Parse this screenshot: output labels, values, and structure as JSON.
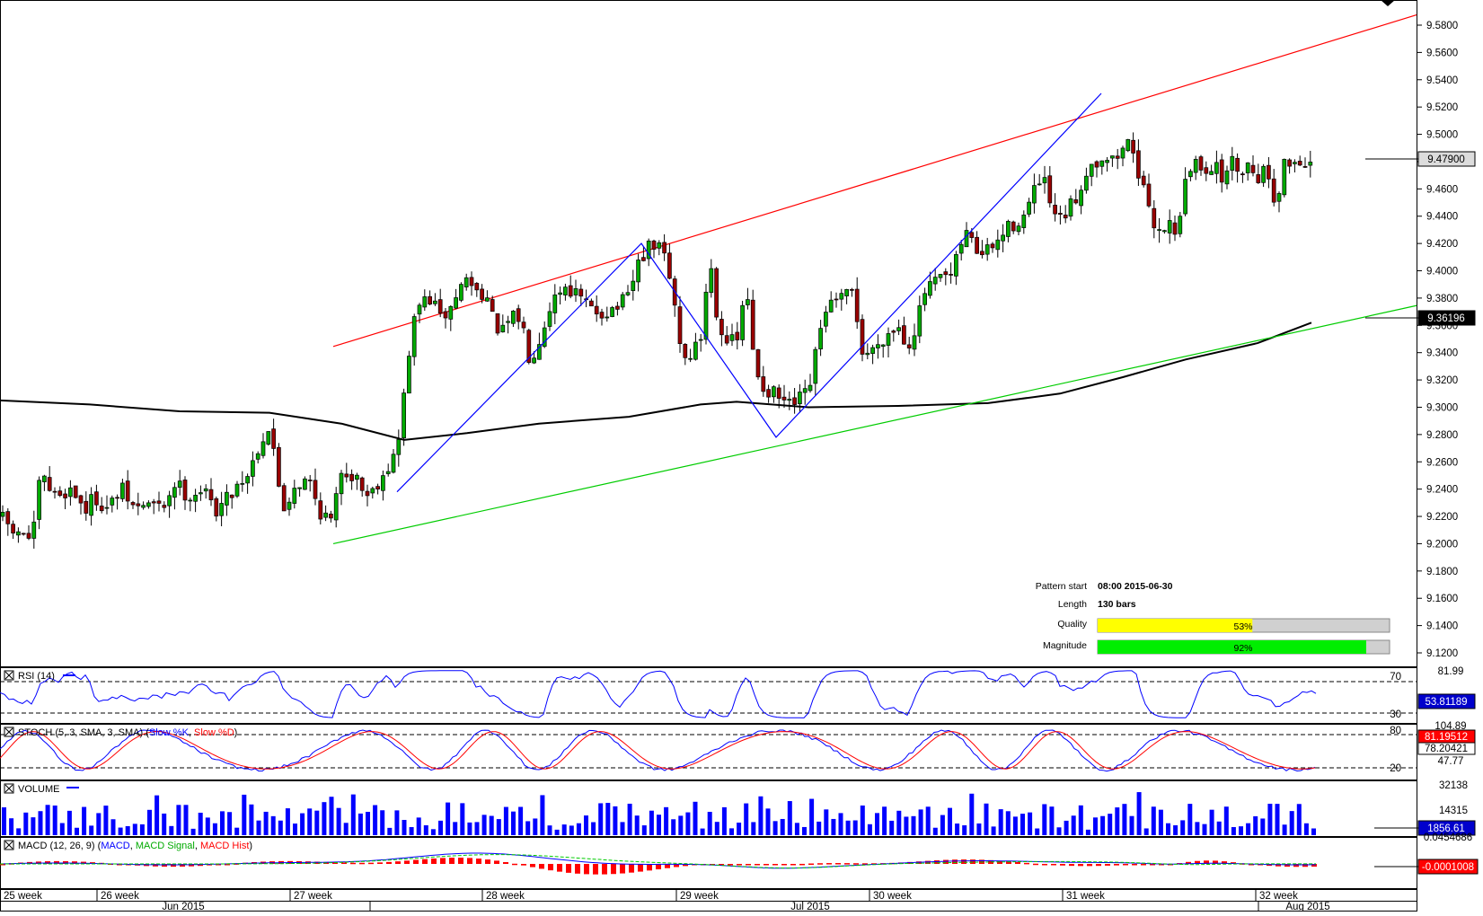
{
  "chart_data": {
    "type": "candlestick",
    "price_axis": {
      "ylim": [
        9.105,
        9.588
      ],
      "ticks": [
        "9.5800",
        "9.5600",
        "9.5400",
        "9.5200",
        "9.5000",
        "9.4800",
        "9.4600",
        "9.4400",
        "9.4200",
        "9.4000",
        "9.3800",
        "9.3600",
        "9.3400",
        "9.3200",
        "9.3000",
        "9.2800",
        "9.2600",
        "9.2400",
        "9.2200",
        "9.2000",
        "9.1800",
        "9.1600",
        "9.1400",
        "9.1200"
      ],
      "tick_values": [
        9.58,
        9.56,
        9.54,
        9.52,
        9.5,
        9.48,
        9.46,
        9.44,
        9.42,
        9.4,
        9.38,
        9.36,
        9.34,
        9.32,
        9.3,
        9.28,
        9.26,
        9.24,
        9.22,
        9.2,
        9.18,
        9.16,
        9.14,
        9.12
      ]
    },
    "current_price_label": "9.47900",
    "current_price": 9.479,
    "ma_value_label": "9.36196",
    "ma_value": 9.36196,
    "pattern_info": {
      "pattern_start_label": "Pattern start",
      "pattern_start_value": "08:00 2015-06-30",
      "length_label": "Length",
      "length_value": "130 bars",
      "quality_label": "Quality",
      "quality_value": "53%",
      "quality_fraction": 0.53,
      "magnitude_label": "Magnitude",
      "magnitude_value": "92%",
      "magnitude_fraction": 0.92
    },
    "channel": {
      "upper_line": {
        "color": "#ff0000",
        "start_price": 9.3445,
        "end_price": 9.5875
      },
      "lower_line": {
        "color": "#00cc00",
        "start_price": 9.2,
        "end_price": 9.3745
      }
    },
    "zigzag": {
      "color": "#0000ff",
      "prices": [
        9.238,
        9.42,
        9.278,
        9.53
      ]
    },
    "candles": {
      "up_color": "#00aa00",
      "down_color": "#990000",
      "first_index": 0
    },
    "time_axis": {
      "week_labels": [
        "25 week",
        "26 week",
        "27 week",
        "28 week",
        "29 week",
        "30 week",
        "31 week",
        "32 week"
      ],
      "month_labels": [
        "Jun 2015",
        "Jul 2015",
        "Aug 2015"
      ]
    },
    "indicators": {
      "rsi": {
        "title": "RSI (14)",
        "levels": [
          "70",
          "30"
        ],
        "top_label": "81.99",
        "value_label": "53.81189",
        "range": [
          18,
          82
        ]
      },
      "stoch": {
        "title_prefix": "STOCH (5, 3, SMA, 3, SMA) (",
        "k_label": "Slow %K",
        "sep": ", ",
        "d_label": "Slow %D",
        "title_suffix": ")",
        "levels": [
          "80",
          "20"
        ],
        "top_label": "104.89",
        "k_value_label": "81.19512",
        "d_value_label": "78.20421",
        "extra_label": "47.77"
      },
      "volume": {
        "title": "VOLUME",
        "top_label": "32138",
        "mid_label": "14315",
        "value_label": "1856.61"
      },
      "macd": {
        "title_prefix": "MACD (12, 26, 9) (",
        "macd_label": "MACD",
        "sep1": ", ",
        "signal_label": "MACD Signal",
        "sep2": ", ",
        "hist_label": "MACD Hist",
        "title_suffix": ")",
        "top_label": "0.0454686",
        "value_label": "-0.0001008"
      }
    }
  },
  "colors": {
    "up": "#00aa00",
    "down": "#990000",
    "rsi_line": "#0000ff",
    "stoch_k": "#0000ff",
    "stoch_d": "#ff0000",
    "volume": "#0000ff",
    "macd": "#0000ff",
    "macd_signal": "#00cc00",
    "macd_hist": "#ff0000",
    "quality_bar": "#ffff00",
    "magnitude_bar": "#00ee00"
  }
}
